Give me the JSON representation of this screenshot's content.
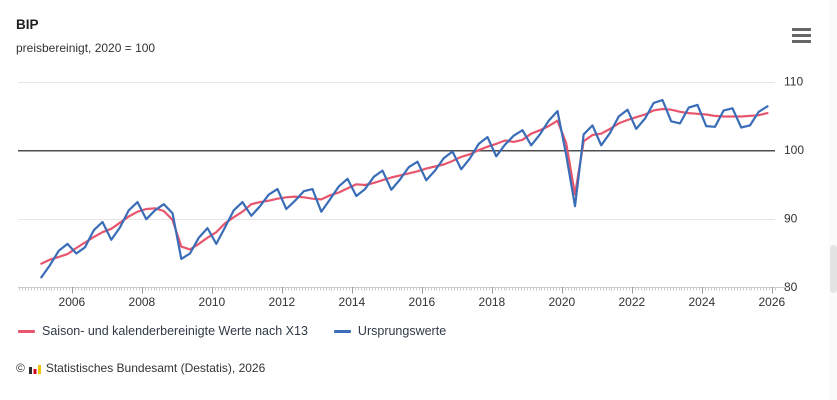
{
  "header": {
    "title": "BIP",
    "subtitle": "preisbereinigt, 2020 = 100"
  },
  "menu": {
    "tooltip": "Chart context menu"
  },
  "legend": {
    "items": [
      {
        "label": "Saison- und kalenderbereinigte Werte nach X13",
        "color": "#e8566d"
      },
      {
        "label": "Ursprungswerte",
        "color": "#3a6db8"
      }
    ]
  },
  "footer": {
    "copyright": "©",
    "source": "Statistisches Bundesamt (Destatis), 2026",
    "logo_colors": [
      "#2b2b2b",
      "#d0021b",
      "#f5c400"
    ]
  },
  "chart_data": {
    "type": "line",
    "title": "BIP",
    "subtitle": "preisbereinigt, 2020 = 100",
    "xlabel": "",
    "ylabel": "",
    "x_unit": "year, quarterly data points (plotted at quarter midpoints)",
    "x_start": 2005.125,
    "x_step": 0.25,
    "xlim": [
      2004.46,
      2026.09
    ],
    "ylim": [
      80,
      111.7
    ],
    "x_ticks": [
      2006,
      2008,
      2010,
      2012,
      2014,
      2016,
      2018,
      2020,
      2022,
      2024,
      2026
    ],
    "y_ticks": [
      80,
      90,
      100,
      110
    ],
    "baseline": 100,
    "grid": "horizontal",
    "legend_position": "bottom-left",
    "y_axis_side": "right",
    "minor_tick_interval_years": 0.0833,
    "colors": {
      "grid": "#e6e6e6",
      "baseline": "#4d4d4d",
      "axis": "#cccccc",
      "major_tick": "#999999",
      "tick_label": "#333333"
    },
    "series": [
      {
        "name": "Saison- und kalenderbereinigte Werte nach X13",
        "color": "#e8566d",
        "values": [
          83.4,
          84.0,
          84.4,
          84.8,
          85.7,
          86.5,
          87.3,
          88.0,
          88.5,
          89.4,
          90.3,
          91.0,
          91.4,
          91.5,
          91.1,
          89.8,
          85.9,
          85.5,
          86.3,
          87.2,
          88.0,
          89.3,
          90.2,
          91.0,
          92.1,
          92.4,
          92.6,
          92.9,
          93.1,
          93.2,
          93.1,
          92.9,
          92.8,
          93.4,
          93.8,
          94.4,
          95.0,
          94.9,
          95.2,
          95.6,
          96.0,
          96.3,
          96.6,
          96.9,
          97.3,
          97.6,
          97.9,
          98.4,
          99.0,
          99.4,
          100.0,
          100.5,
          100.9,
          101.4,
          101.2,
          101.5,
          102.4,
          102.9,
          103.5,
          104.3,
          101.0,
          93.5,
          101.3,
          102.2,
          102.4,
          103.1,
          103.9,
          104.4,
          104.8,
          105.2,
          105.8,
          106.0,
          105.9,
          105.6,
          105.4,
          105.3,
          105.2,
          105.0,
          104.9,
          104.9,
          104.9,
          105.0,
          105.1,
          105.4
        ]
      },
      {
        "name": "Ursprungswerte",
        "color": "#3a6db8",
        "values": [
          81.4,
          83.2,
          85.3,
          86.3,
          84.9,
          85.8,
          88.3,
          89.5,
          86.9,
          88.7,
          91.2,
          92.4,
          89.9,
          91.2,
          92.1,
          90.8,
          84.1,
          84.9,
          87.2,
          88.6,
          86.3,
          88.7,
          91.2,
          92.4,
          90.4,
          91.8,
          93.5,
          94.3,
          91.4,
          92.6,
          94.0,
          94.3,
          91.0,
          92.8,
          94.7,
          95.8,
          93.3,
          94.3,
          96.1,
          97.0,
          94.2,
          95.7,
          97.5,
          98.3,
          95.6,
          97.0,
          98.8,
          99.8,
          97.2,
          98.8,
          100.9,
          101.9,
          99.1,
          100.8,
          102.1,
          102.9,
          100.7,
          102.3,
          104.3,
          105.7,
          99.3,
          91.8,
          102.3,
          103.6,
          100.7,
          102.5,
          104.9,
          105.9,
          103.1,
          104.6,
          106.9,
          107.3,
          104.2,
          103.9,
          106.2,
          106.6,
          103.5,
          103.4,
          105.8,
          106.1,
          103.3,
          103.6,
          105.6,
          106.4
        ]
      }
    ]
  }
}
